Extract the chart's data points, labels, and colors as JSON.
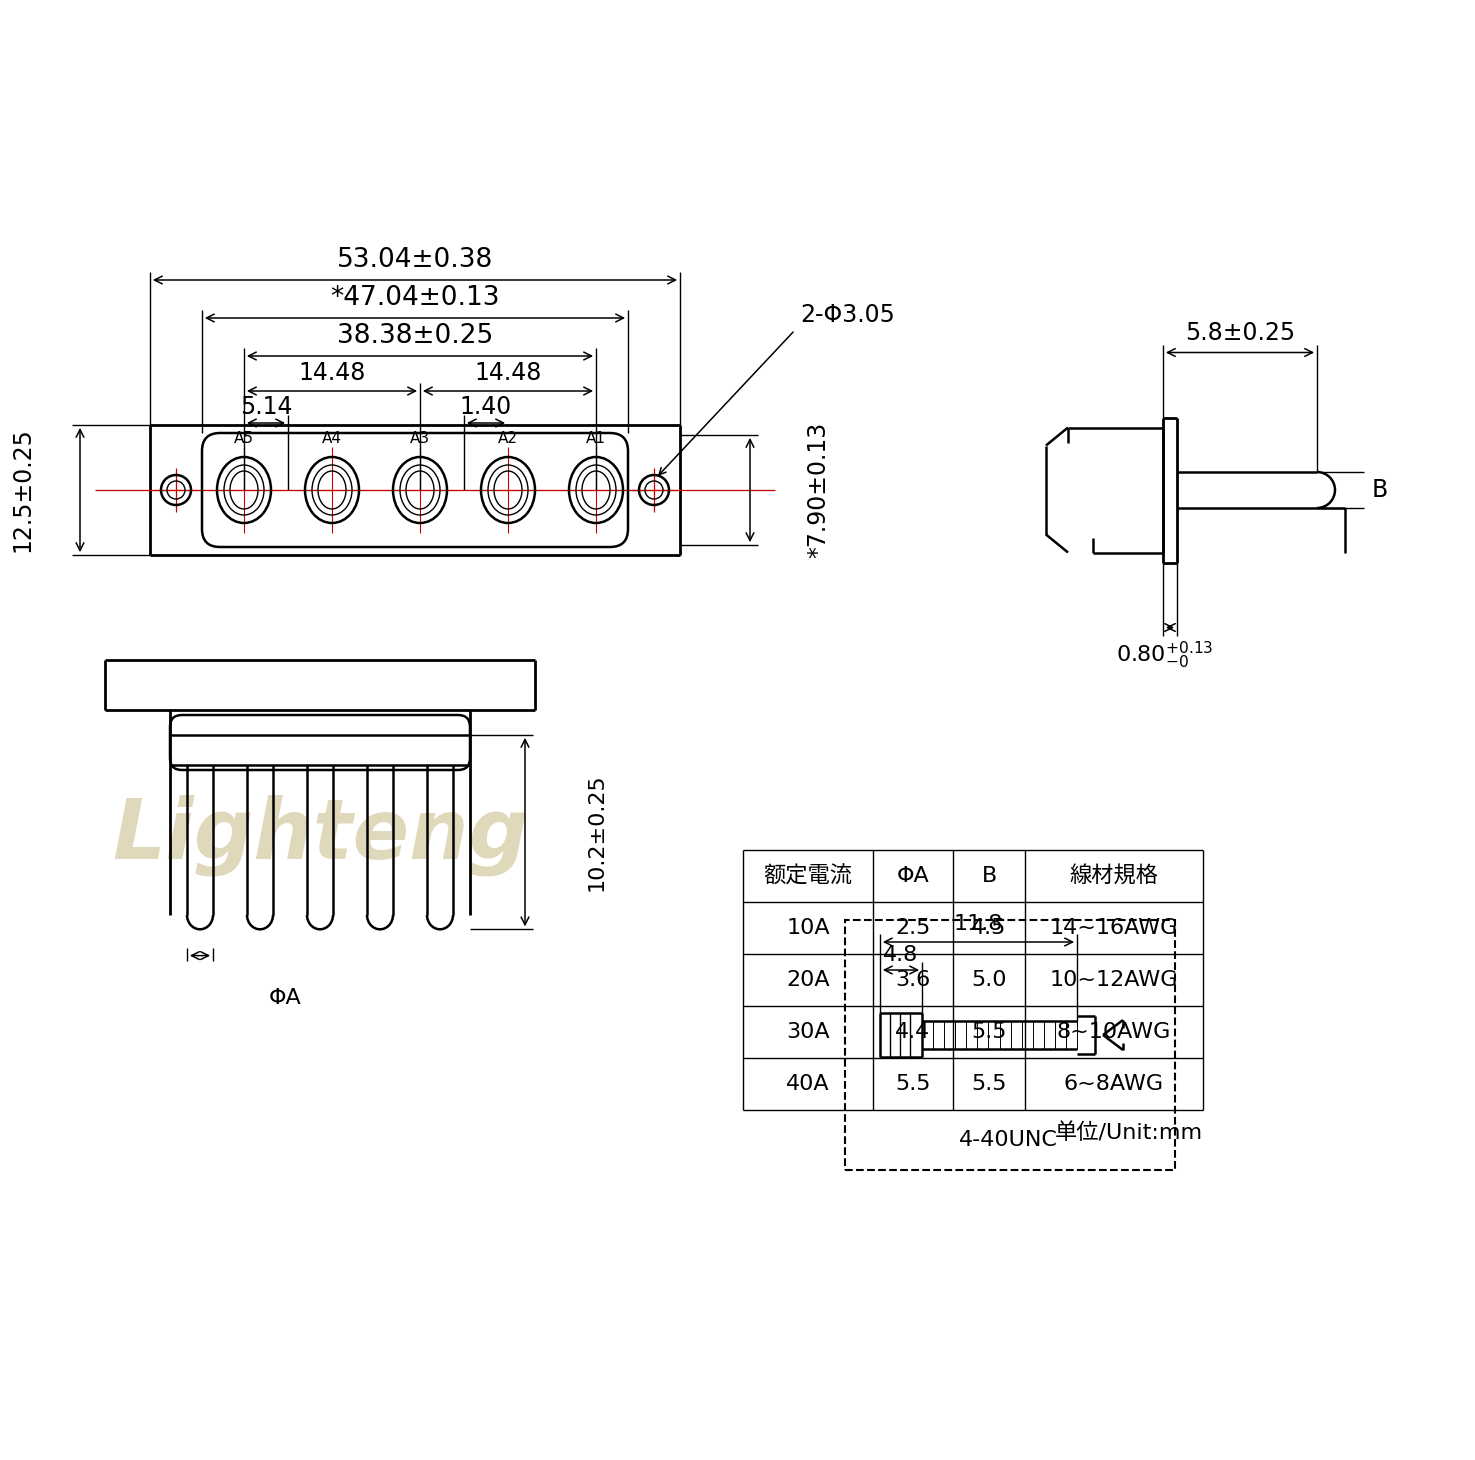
{
  "bg_color": "#ffffff",
  "line_color": "#000000",
  "red_color": "#cc0000",
  "watermark_color": "#c8b882",
  "watermark_text": "Lighteng",
  "unit_text": "单位/Unit:mm",
  "table_headers": [
    "额定電流",
    "ΦA",
    "B",
    "線材規格"
  ],
  "table_rows": [
    [
      "10A",
      "2.5",
      "4.5",
      "14~16AWG"
    ],
    [
      "20A",
      "3.6",
      "5.0",
      "10~12AWG"
    ],
    [
      "30A",
      "4.4",
      "5.5",
      "8~10AWG"
    ],
    [
      "40A",
      "5.5",
      "5.5",
      "6~8AWG"
    ]
  ],
  "dims": {
    "overall_width": "53.04±0.38",
    "inner_width": "*47.04±0.13",
    "contact_width": "38.38±0.25",
    "span1": "14.48",
    "span2": "14.48",
    "gap1": "5.14",
    "gap2": "1.40",
    "overall_height": "12.5±0.25",
    "depth": "*7.90±0.13",
    "hole_dim": "2-Φ3.05",
    "side_width": "5.8±0.25",
    "flange_t": "0.80±⁰¹³",
    "flange_t2": "0.80",
    "flange_tol": "+0.13",
    "flange_tol2": "-0",
    "screw_len": "11.8",
    "screw_inner": "4.8",
    "screw_type": "4-40UNC",
    "bottom_depth": "10.2±0.25"
  }
}
